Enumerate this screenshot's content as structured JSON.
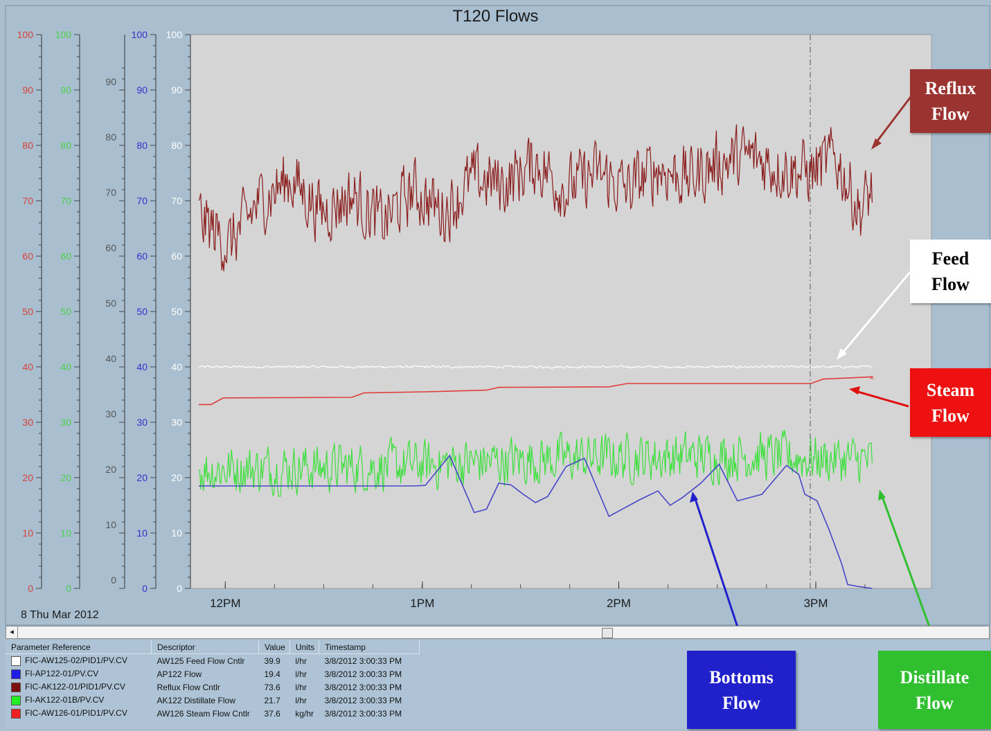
{
  "window": {
    "title": "T120 Flows",
    "date_label": "8 Thu Mar 2012"
  },
  "chart_data": {
    "type": "line",
    "title": "T120 Flows",
    "x_range": [
      "11:53 AM",
      "3:50 PM"
    ],
    "x_ticks": [
      "12PM",
      "1PM",
      "2PM",
      "3PM"
    ],
    "cursor_time": "3:00:33 PM",
    "ylim": [
      0,
      100
    ],
    "axes": [
      {
        "name": "red-scale",
        "color": "#d9413a",
        "ticks": [
          "100",
          "90",
          "80",
          "70",
          "60",
          "50",
          "40",
          "30",
          "20",
          "10",
          "0"
        ]
      },
      {
        "name": "green-scale",
        "color": "#4cd14a",
        "ticks": [
          "100",
          "90",
          "80",
          "70",
          "60",
          "50",
          "40",
          "30",
          "20",
          "10",
          "0"
        ]
      },
      {
        "name": "dark-scale",
        "color": "#555555",
        "ticks": [
          "90",
          "80",
          "70",
          "60",
          "50",
          "40",
          "30",
          "20",
          "10",
          "0"
        ]
      },
      {
        "name": "blue-scale",
        "color": "#3030c8",
        "ticks": [
          "100",
          "90",
          "80",
          "70",
          "60",
          "50",
          "40",
          "30",
          "20",
          "10",
          "0"
        ]
      },
      {
        "name": "white-scale",
        "color": "#ffffff",
        "ticks": [
          "100",
          "90",
          "80",
          "70",
          "60",
          "50",
          "40",
          "30",
          "20",
          "10",
          "0"
        ]
      }
    ],
    "series": [
      {
        "name": "FIC-AW125-02/PID1/PV.CV",
        "color": "#ffffff",
        "kind": "noise",
        "base": [
          [
            0,
            40
          ],
          [
            1,
            40
          ]
        ],
        "amp": 0.3
      },
      {
        "name": "FI-AP122-01/PV.CV",
        "color": "#4646c8",
        "kind": "line",
        "points": [
          [
            0,
            18.5
          ],
          [
            0.3,
            18.5
          ],
          [
            0.35,
            18.5
          ],
          [
            0.37,
            18.6
          ],
          [
            0.41,
            24
          ],
          [
            0.45,
            13.7
          ],
          [
            0.47,
            14.3
          ],
          [
            0.49,
            19
          ],
          [
            0.51,
            18.7
          ],
          [
            0.53,
            17
          ],
          [
            0.55,
            15.5
          ],
          [
            0.57,
            16.6
          ],
          [
            0.6,
            22
          ],
          [
            0.63,
            23.5
          ],
          [
            0.67,
            13
          ],
          [
            0.72,
            16
          ],
          [
            0.75,
            17.6
          ],
          [
            0.77,
            15
          ],
          [
            0.79,
            16.4
          ],
          [
            0.82,
            19
          ],
          [
            0.85,
            22.4
          ],
          [
            0.88,
            15.8
          ],
          [
            0.92,
            17
          ],
          [
            0.96,
            22.2
          ],
          [
            0.98,
            20.6
          ],
          [
            0.99,
            17
          ],
          [
            1.01,
            15.8
          ],
          [
            1.03,
            10.5
          ],
          [
            1.05,
            4.5
          ],
          [
            1.06,
            0.7
          ],
          [
            1.08,
            0.3
          ],
          [
            1.1,
            0
          ]
        ]
      },
      {
        "name": "FIC-AK122-01/PID1/PV.CV",
        "color": "#8a1c1c",
        "kind": "noise",
        "base": [
          [
            0,
            67
          ],
          [
            0.05,
            62
          ],
          [
            0.1,
            70
          ],
          [
            0.15,
            74
          ],
          [
            0.2,
            68
          ],
          [
            0.25,
            71
          ],
          [
            0.3,
            66
          ],
          [
            0.35,
            72
          ],
          [
            0.4,
            68
          ],
          [
            0.45,
            74
          ],
          [
            0.5,
            73
          ],
          [
            0.55,
            77
          ],
          [
            0.6,
            72
          ],
          [
            0.65,
            75
          ],
          [
            0.7,
            72
          ],
          [
            0.75,
            76
          ],
          [
            0.8,
            74
          ],
          [
            0.85,
            77
          ],
          [
            0.9,
            78
          ],
          [
            0.95,
            76
          ],
          [
            1,
            75
          ],
          [
            1.04,
            78
          ],
          [
            1.08,
            68
          ],
          [
            1.1,
            72
          ]
        ],
        "amp": 8
      },
      {
        "name": "FI-AK122-01B/PV.CV",
        "color": "#3ce03c",
        "kind": "noise",
        "base": [
          [
            0,
            21.5
          ],
          [
            0.3,
            22
          ],
          [
            0.6,
            23.5
          ],
          [
            0.9,
            24
          ],
          [
            1.1,
            23
          ]
        ],
        "amp": 6
      },
      {
        "name": "FIC-AW126-01/PID1/PV.CV",
        "color": "#e03c3c",
        "kind": "step",
        "points": [
          [
            0,
            33.2
          ],
          [
            0.02,
            33.2
          ],
          [
            0.04,
            34.4
          ],
          [
            0.25,
            34.5
          ],
          [
            0.27,
            35.3
          ],
          [
            0.37,
            35.5
          ],
          [
            0.47,
            35.8
          ],
          [
            0.49,
            36.3
          ],
          [
            0.67,
            36.4
          ],
          [
            0.7,
            37
          ],
          [
            1.0,
            37
          ],
          [
            1.02,
            37.8
          ],
          [
            1.1,
            38.2
          ]
        ]
      }
    ]
  },
  "callouts": {
    "reflux": {
      "line1": "Reflux",
      "line2": "Flow",
      "bg": "#9b3330",
      "fg": "#ffffff"
    },
    "feed": {
      "line1": "Feed",
      "line2": "Flow",
      "bg": "#ffffff",
      "fg": "#000000"
    },
    "steam": {
      "line1": "Steam",
      "line2": "Flow",
      "bg": "#ee1111",
      "fg": "#ffffff"
    },
    "bottoms": {
      "line1": "Bottoms",
      "line2": "Flow",
      "bg": "#2121cc",
      "fg": "#ffffff"
    },
    "distillate": {
      "line1": "Distillate",
      "line2": "Flow",
      "bg": "#2fbf2f",
      "fg": "#ffffff"
    }
  },
  "legend": {
    "headers": [
      "Parameter Reference",
      "Descriptor",
      "Value",
      "Units",
      "Timestamp"
    ],
    "rows": [
      {
        "color": "#ffffff",
        "ref": "FIC-AW125-02/PID1/PV.CV",
        "desc": "AW125 Feed Flow Cntlr",
        "value": "39.9",
        "units": "l/hr",
        "ts": "3/8/2012 3:00:33 PM"
      },
      {
        "color": "#1e1ee6",
        "ref": "FI-AP122-01/PV.CV",
        "desc": "AP122 Flow",
        "value": "19.4",
        "units": "l/hr",
        "ts": "3/8/2012 3:00:33 PM"
      },
      {
        "color": "#7a1010",
        "ref": "FIC-AK122-01/PID1/PV.CV",
        "desc": "Reflux Flow Cntlr",
        "value": "73.6",
        "units": "l/hr",
        "ts": "3/8/2012 3:00:33 PM"
      },
      {
        "color": "#22ee22",
        "ref": "FI-AK122-01B/PV.CV",
        "desc": "AK122 Distillate Flow",
        "value": "21.7",
        "units": "l/hr",
        "ts": "3/8/2012 3:00:33 PM"
      },
      {
        "color": "#ee2222",
        "ref": "FIC-AW126-01/PID1/PV.CV",
        "desc": "AW126 Steam Flow Cntlr",
        "value": "37.6",
        "units": "kg/hr",
        "ts": "3/8/2012 3:00:33 PM"
      }
    ]
  }
}
